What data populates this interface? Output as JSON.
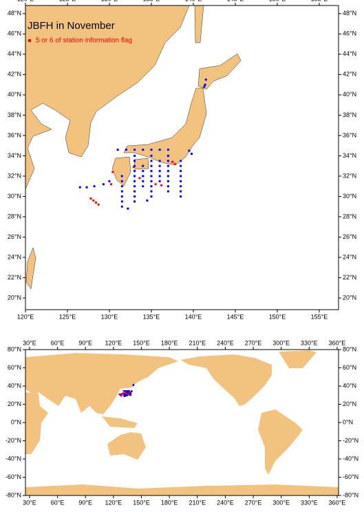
{
  "maps": [
    {
      "title": "JBFH in November",
      "legend": "5 or 6 of station information flag",
      "xlim": [
        120,
        157.3
      ],
      "ylim": [
        18.85,
        48.8
      ],
      "xticks": [
        {
          "value": 120,
          "label": "120°E"
        },
        {
          "value": 125,
          "label": "125°E"
        },
        {
          "value": 130,
          "label": "130°E"
        },
        {
          "value": 135,
          "label": "135°E"
        },
        {
          "value": 140,
          "label": "140°E"
        },
        {
          "value": 145,
          "label": "145°E"
        },
        {
          "value": 150,
          "label": "150°E"
        },
        {
          "value": 155,
          "label": "155°E"
        }
      ],
      "yticks": [
        {
          "value": 20,
          "label": "20°N"
        },
        {
          "value": 22,
          "label": "22°N"
        },
        {
          "value": 24,
          "label": "24°N"
        },
        {
          "value": 26,
          "label": "26°N"
        },
        {
          "value": 28,
          "label": "28°N"
        },
        {
          "value": 30,
          "label": "30°N"
        },
        {
          "value": 32,
          "label": "32°N"
        },
        {
          "value": 34,
          "label": "34°N"
        },
        {
          "value": 36,
          "label": "36°N"
        },
        {
          "value": 38,
          "label": "38°N"
        },
        {
          "value": 40,
          "label": "40°N"
        },
        {
          "value": 42,
          "label": "42°N"
        },
        {
          "value": 44,
          "label": "44°N"
        },
        {
          "value": 46,
          "label": "46°N"
        },
        {
          "value": 48,
          "label": "48°N"
        }
      ]
    },
    {
      "xlim": [
        25.6,
        361.5
      ],
      "ylim": [
        -80,
        80
      ],
      "xticks": [
        {
          "value": 30,
          "label": "30°E"
        },
        {
          "value": 60,
          "label": "60°E"
        },
        {
          "value": 90,
          "label": "90°E"
        },
        {
          "value": 120,
          "label": "120°E"
        },
        {
          "value": 150,
          "label": "150°E"
        },
        {
          "value": 180,
          "label": "180°E"
        },
        {
          "value": 210,
          "label": "210°E"
        },
        {
          "value": 240,
          "label": "240°E"
        },
        {
          "value": 270,
          "label": "270°E"
        },
        {
          "value": 300,
          "label": "300°E"
        },
        {
          "value": 330,
          "label": "330°E"
        },
        {
          "value": 360,
          "label": "360°E"
        }
      ],
      "yticks": [
        {
          "value": 80,
          "label": "80°N"
        },
        {
          "value": 60,
          "label": "60°N"
        },
        {
          "value": 40,
          "label": "40°N"
        },
        {
          "value": 20,
          "label": "20°N"
        },
        {
          "value": 0,
          "label": "0°N"
        },
        {
          "value": -20,
          "label": "-20°N"
        },
        {
          "value": -40,
          "label": "-40°N"
        },
        {
          "value": -60,
          "label": "-60°N"
        },
        {
          "value": -80,
          "label": "-80°N"
        }
      ]
    }
  ],
  "stations": {
    "lon": [
      133,
      133,
      133,
      133,
      133,
      133,
      133,
      133,
      133,
      133,
      135,
      135,
      135,
      135,
      135,
      135,
      135,
      135,
      135,
      137,
      137,
      137,
      137,
      137,
      137,
      137,
      137,
      138.5,
      138.5,
      138.5,
      138.5,
      138.5,
      138.5,
      138.5,
      138.5,
      131.5,
      131.5,
      131.5,
      131.5,
      131.5,
      131.5,
      131.5,
      134,
      134,
      134,
      134,
      134,
      136,
      136,
      136,
      136,
      136,
      131,
      132,
      133,
      134,
      135,
      136,
      137,
      141.4,
      141.5,
      141.3,
      126.5,
      127.3,
      128.2,
      129.3,
      130,
      132.2,
      134.5,
      139.5,
      139.8
    ],
    "lat": [
      29.5,
      30,
      30.5,
      31,
      31.5,
      32,
      32.5,
      33,
      33.5,
      34,
      30,
      30.5,
      31,
      31.5,
      32,
      32.5,
      33,
      33.5,
      34,
      30.5,
      31,
      31.5,
      32,
      32.5,
      33,
      33.5,
      34,
      30,
      30.5,
      31,
      31.5,
      32,
      32.5,
      33,
      33.5,
      29,
      29.5,
      30,
      30.5,
      31,
      31.5,
      32,
      31,
      31.5,
      32,
      32.5,
      33,
      31.5,
      32,
      32.5,
      33,
      33.5,
      34.6,
      34.6,
      34.6,
      34.6,
      34.6,
      34.6,
      34.6,
      41,
      41.5,
      40.8,
      30.9,
      30.9,
      31,
      31.2,
      31.5,
      28.8,
      29.6,
      34.5,
      34.2
    ]
  },
  "flagged": {
    "lon": [
      127.8,
      128.1,
      128.4,
      128.7,
      130.2,
      130.4,
      133.6,
      135.5,
      136.2,
      137.5,
      137.8,
      132.9
    ],
    "lat": [
      29.8,
      29.6,
      29.4,
      29.2,
      31.2,
      32.4,
      31.8,
      31.2,
      31.1,
      33.4,
      33.2,
      32.9
    ]
  }
}
